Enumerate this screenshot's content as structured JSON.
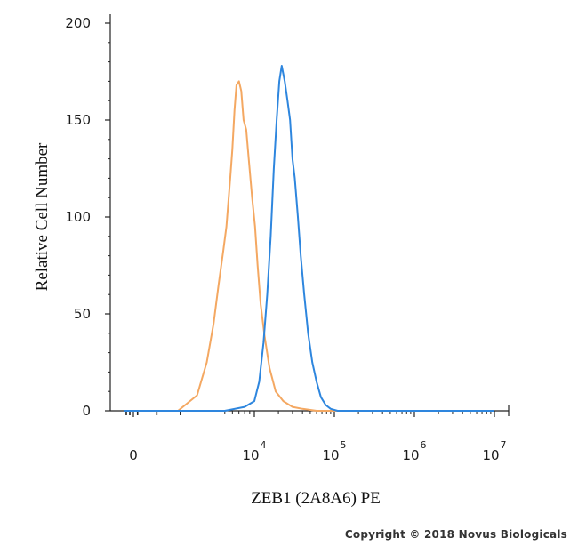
{
  "chart_data": {
    "type": "line",
    "subtype": "flow-cytometry-histogram",
    "xlabel": "ZEB1 (2A8A6) PE",
    "ylabel": "Relative Cell Number",
    "x_scale": "biexponential",
    "x_ticks": [
      {
        "value": 0,
        "base": "0",
        "exp": ""
      },
      {
        "value": 10000,
        "base": "10",
        "exp": "4"
      },
      {
        "value": 100000,
        "base": "10",
        "exp": "5"
      },
      {
        "value": 1000000,
        "base": "10",
        "exp": "6"
      },
      {
        "value": 10000000,
        "base": "10",
        "exp": "7"
      }
    ],
    "ylim": [
      0,
      200
    ],
    "y_ticks": [
      0,
      50,
      100,
      150,
      200
    ],
    "grid": false,
    "legend": "none",
    "series": [
      {
        "color": "#f4a862",
        "x": [
          -1000,
          1500,
          2500,
          3200,
          3800,
          4300,
          4800,
          5200,
          5700,
          6000,
          6300,
          6600,
          7000,
          7400,
          7800,
          8300,
          8800,
          9500,
          10200,
          11000,
          12000,
          13500,
          15500,
          18500,
          23000,
          30000,
          40000,
          60000,
          100000,
          10000000
        ],
        "y": [
          0,
          0,
          8,
          25,
          45,
          65,
          82,
          95,
          120,
          135,
          155,
          168,
          170,
          165,
          150,
          145,
          130,
          110,
          95,
          75,
          55,
          38,
          22,
          10,
          5,
          2,
          1,
          0,
          0,
          0
        ]
      },
      {
        "color": "#2e86de",
        "x": [
          -1000,
          5000,
          8000,
          10000,
          11500,
          13000,
          14500,
          16000,
          17500,
          19000,
          20500,
          22000,
          24000,
          26000,
          28000,
          30000,
          32000,
          35000,
          38000,
          42000,
          47000,
          53000,
          60000,
          68000,
          78000,
          90000,
          110000,
          150000,
          10000000
        ],
        "y": [
          0,
          0,
          2,
          5,
          15,
          35,
          60,
          90,
          125,
          150,
          170,
          178,
          170,
          160,
          150,
          130,
          120,
          100,
          80,
          60,
          40,
          25,
          15,
          7,
          3,
          1,
          0,
          0,
          0
        ]
      }
    ]
  },
  "copyright": "Copyright © 2018 Novus Biologicals"
}
